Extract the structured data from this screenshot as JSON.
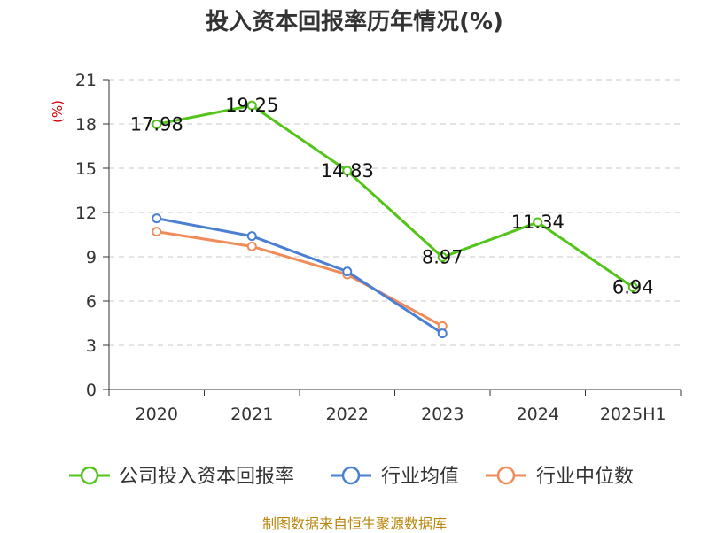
{
  "title": "投入资本回报率历年情况(%)",
  "unit_label": "(%)",
  "source": "制图数据来自恒生聚源数据库",
  "colors": {
    "company": "#52c41a",
    "industry_avg": "#4a7fd4",
    "industry_median": "#f08c5a"
  },
  "chart_data": {
    "type": "line",
    "categories": [
      "2020",
      "2021",
      "2022",
      "2023",
      "2024",
      "2025H1"
    ],
    "ylim": [
      0,
      21
    ],
    "yticks": [
      0,
      3,
      6,
      9,
      12,
      15,
      18,
      21
    ],
    "ylabel": "(%)",
    "grid": true,
    "legend_position": "bottom",
    "series": [
      {
        "name": "公司投入资本回报率",
        "values": [
          17.98,
          19.25,
          14.83,
          8.97,
          11.34,
          6.94
        ],
        "labels": [
          "17.98",
          "19.25",
          "14.83",
          "8.97",
          "11.34",
          "6.94"
        ]
      },
      {
        "name": "行业均值",
        "values": [
          11.6,
          10.4,
          8.0,
          3.8,
          null,
          null
        ]
      },
      {
        "name": "行业中位数",
        "values": [
          10.7,
          9.7,
          7.8,
          4.3,
          null,
          null
        ]
      }
    ]
  }
}
